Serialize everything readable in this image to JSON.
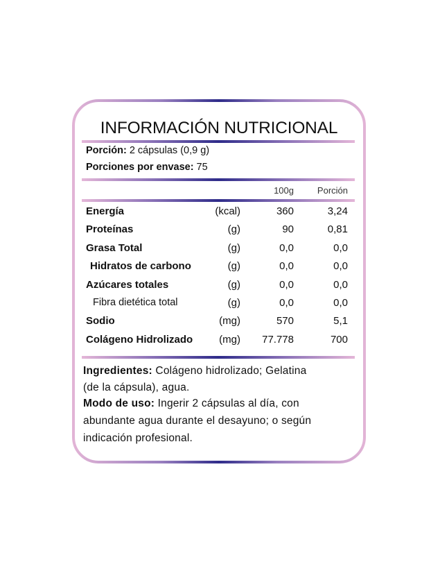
{
  "title": "INFORMACIÓN  NUTRICIONAL",
  "serving": {
    "label": "Porción:",
    "value": " 2 cápsulas (0,9 g)"
  },
  "servings_per_container": {
    "label": "Porciones por envase:",
    "value": " 75"
  },
  "columns": {
    "per100": "100g",
    "portion": "Porción"
  },
  "rows": [
    {
      "name": "Energía",
      "unit": "(kcal)",
      "per100": "360",
      "portion": "3,24",
      "style": "bold"
    },
    {
      "name": "Proteínas",
      "unit": "(g)",
      "per100": "90",
      "portion": "0,81",
      "style": "bold"
    },
    {
      "name": "Grasa Total",
      "unit": "(g)",
      "per100": "0,0",
      "portion": "0,0",
      "style": "bold"
    },
    {
      "name": "Hidratos de carbono",
      "unit": "(g)",
      "per100": "0,0",
      "portion": "0,0",
      "style": "indent"
    },
    {
      "name": "Azúcares totales",
      "unit": "(g)",
      "per100": "0,0",
      "portion": "0,0",
      "style": "bold"
    },
    {
      "name": "Fibra dietética total",
      "unit": "(g)",
      "per100": "0,0",
      "portion": "0,0",
      "style": "sub"
    },
    {
      "name": "Sodio",
      "unit": "(mg)",
      "per100": "570",
      "portion": "5,1",
      "style": "bold"
    },
    {
      "name": "Colágeno Hidrolizado",
      "unit": "(mg)",
      "per100": "77.778",
      "portion": "700",
      "style": "bold"
    }
  ],
  "ingredients": {
    "label": "Ingredientes:",
    "line1": "  Colágeno hidrolizado; Gelatina",
    "line2": "(de la cápsula), agua."
  },
  "usage": {
    "label": "Modo de uso:",
    "line1": " Ingerir 2 cápsulas al día, con",
    "line2": "abundante agua durante el desayuno; o según",
    "line3": "indicación profesional."
  },
  "colors": {
    "accent_pink": "#e4b6d8",
    "accent_indigo": "#2f2c8a"
  }
}
